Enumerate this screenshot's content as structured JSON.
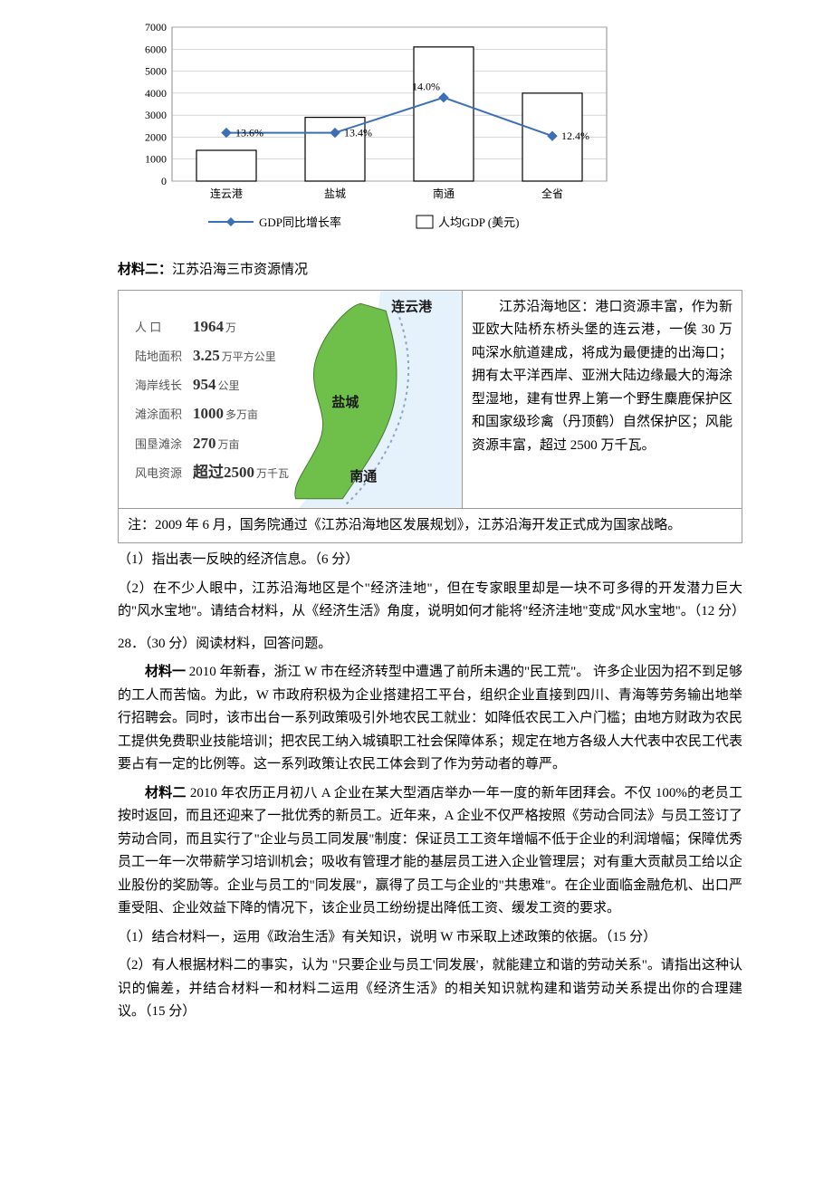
{
  "chart1": {
    "type": "bar+line",
    "categories": [
      "连云港",
      "盐城",
      "南通",
      "全省"
    ],
    "bar_values": [
      1400,
      2900,
      6100,
      4000
    ],
    "line_values": [
      2200,
      2200,
      3800,
      2050
    ],
    "line_labels": [
      "13.6%",
      "13.4%",
      "14.0%",
      "12.4%"
    ],
    "ylim": [
      0,
      7000
    ],
    "ytick_step": 1000,
    "bar_fill": "#ffffff",
    "bar_stroke": "#000000",
    "line_color": "#3b6fb6",
    "marker_fill": "#3b6fb6",
    "grid_color": "#bfbfbf",
    "legend": {
      "line": "GDP同比增长率",
      "bar": "人均GDP (美元)"
    },
    "font_size_axis": 12,
    "font_size_label": 12
  },
  "material2_label": "材料二：",
  "material2_title": "江苏沿海三市资源情况",
  "map_stats": [
    {
      "label": "人  口",
      "value": "1964",
      "unit": "万"
    },
    {
      "label": "陆地面积",
      "value": "3.25",
      "unit": "万平方公里"
    },
    {
      "label": "海岸线长",
      "value": "954",
      "unit": "公里"
    },
    {
      "label": "滩涂面积",
      "value": "1000",
      "unit": "多万亩"
    },
    {
      "label": "围垦滩涂",
      "value": "270",
      "unit": "万亩"
    },
    {
      "label": "风电资源",
      "value": "超过2500",
      "unit": "万千瓦"
    }
  ],
  "map_cities": [
    "连云港",
    "盐城",
    "南通"
  ],
  "map_land_color": "#6fbf4b",
  "map_sea_color": "#cfe6f7",
  "map_border_color": "#8aa6c1",
  "info_paragraph": "江苏沿海地区：港口资源丰富，作为新亚欧大陆桥东桥头堡的连云港，一俟 30 万吨深水航道建成，将成为最便捷的出海口；拥有太平洋西岸、亚洲大陆边缘最大的海涂型湿地，建有世界上第一个野生麋鹿保护区和国家级珍禽（丹顶鹤）自然保护区；风能资源丰富，超过 2500 万千瓦。",
  "note_text": "注：2009 年 6 月，国务院通过《江苏沿海地区发展规划》，江苏沿海开发正式成为国家战略。",
  "q1_1": "（1）指出表一反映的经济信息。（6 分）",
  "q1_2": "（2）在不少人眼中，江苏沿海地区是个\"经济洼地\"，但在专家眼里却是一块不可多得的开发潜力巨大的\"风水宝地\"。请结合材料，从《经济生活》角度，说明如何才能将\"经济洼地\"变成\"风水宝地\"。（12 分）",
  "q28_head": "28．（30 分）阅读材料，回答问题。",
  "m1_label": "材料一",
  "m1_p1": "  2010 年新春，浙江 W 市在经济转型中遭遇了前所未遇的\"民工荒\"。 许多企业因为招不到足够的工人而苦恼。为此，W 市政府积极为企业搭建招工平台，组织企业直接到四川、青海等劳务输出地举行招聘会。同时，该市出台一系列政策吸引外地农民工就业：如降低农民工入户门槛；由地方财政为农民工提供免费职业技能培训；把农民工纳入城镇职工社会保障体系；规定在地方各级人大代表中农民工代表要占有一定的比例等。这一系列政策让农民工体会到了作为劳动者的尊严。",
  "m2_label": "材料二",
  "m2_p1": "  2010 年农历正月初八 A 企业在某大型酒店举办一年一度的新年团拜会。不仅 100%的老员工按时返回，而且还迎来了一批优秀的新员工。近年来，A 企业不仅严格按照《劳动合同法》与员工签订了劳动合同，而且实行了\"企业与员工同发展\"制度：保证员工工资年增幅不低于企业的利润增幅；保障优秀员工一年一次带薪学习培训机会；吸收有管理才能的基层员工进入企业管理层；对有重大贡献员工给以企业股份的奖励等。企业与员工的\"同发展\"，赢得了员工与企业的\"共患难\"。在企业面临金融危机、出口严重受阻、企业效益下降的情况下，该企业员工纷纷提出降低工资、缓发工资的要求。",
  "q28_1": "（1）结合材料一，运用《政治生活》有关知识，说明 W 市采取上述政策的依据。（15 分）",
  "q28_2": "（2）有人根据材料二的事实，认为 \"只要企业与员工'同发展'，就能建立和谐的劳动关系\"。请指出这种认识的偏差，并结合材料一和材料二运用《经济生活》的相关知识就构建和谐劳动关系提出你的合理建议。（15 分）"
}
